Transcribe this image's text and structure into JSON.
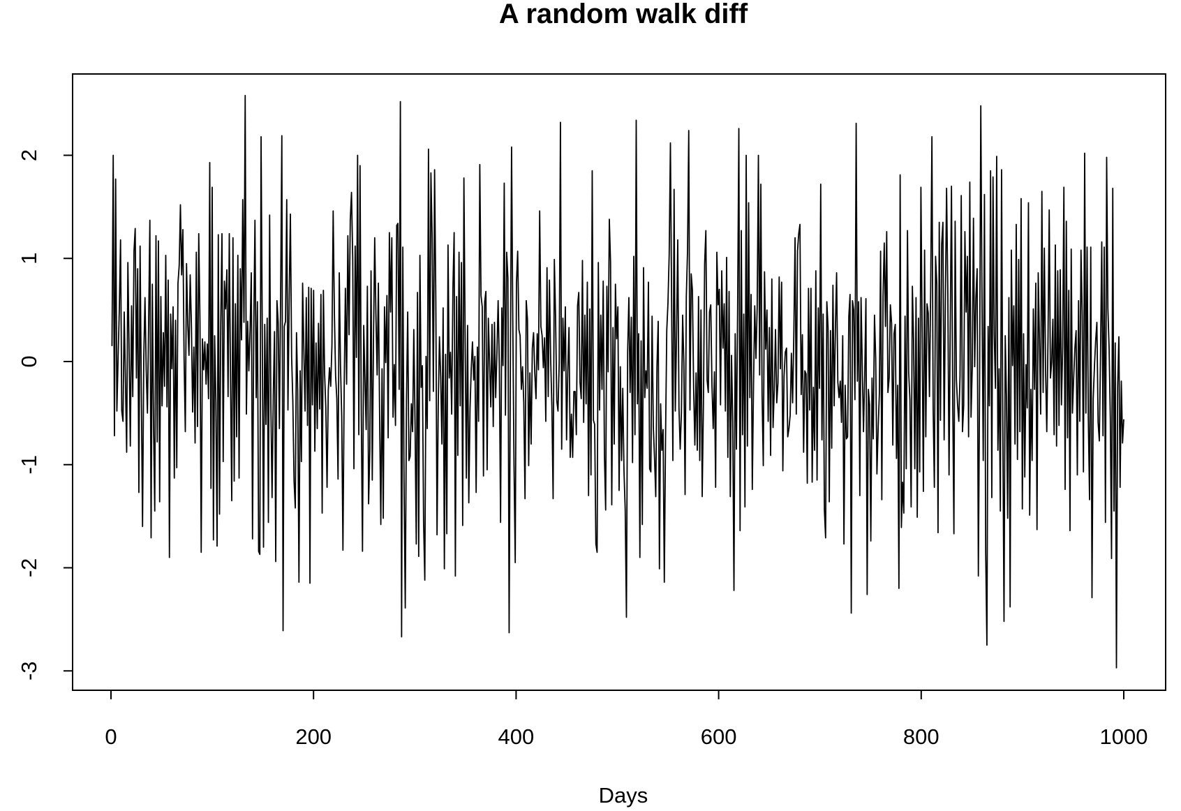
{
  "chart_data": {
    "type": "line",
    "title": "A random walk diff",
    "xlabel": "Days",
    "ylabel": "",
    "xlim": [
      1,
      1000
    ],
    "ylim": [
      -3,
      2.58
    ],
    "x_ticks": [
      0,
      200,
      400,
      600,
      800,
      1000
    ],
    "x_tick_labels": [
      "0",
      "200",
      "400",
      "600",
      "800",
      "1000"
    ],
    "y_ticks": [
      -3,
      -2,
      -1,
      0,
      1,
      2
    ],
    "y_tick_labels": [
      "-3",
      "-2",
      "-1",
      "0",
      "1",
      "2"
    ],
    "grid": false,
    "line_color": "#000000",
    "series": [
      {
        "values": [
          0.15,
          2.0,
          -0.72,
          1.77,
          -0.48,
          0.03,
          0.51,
          1.18,
          -0.48,
          -0.58,
          0.48,
          -0.18,
          -0.88,
          0.96,
          0.13,
          -0.82,
          0.54,
          -0.34,
          1.07,
          1.29,
          -0.16,
          0.9,
          -1.27,
          1.12,
          -0.3,
          -1.6,
          0.03,
          0.62,
          -0.08,
          -0.5,
          0.38,
          1.37,
          -1.71,
          0.75,
          -0.62,
          -1.45,
          1.22,
          -0.78,
          1.17,
          -1.36,
          0.63,
          -0.43,
          0.28,
          -0.24,
          1.03,
          -0.44,
          0.79,
          -1.9,
          0.46,
          -0.07,
          0.53,
          -1.13,
          0.4,
          -1.03,
          0.76,
          0.93,
          1.52,
          0.84,
          1.28,
          0.03,
          -0.68,
          0.95,
          0.37,
          0.06,
          0.84,
          0.35,
          -0.49,
          0.14,
          -0.79,
          1.06,
          -0.63,
          1.24,
          0.39,
          -1.85,
          0.22,
          -0.08,
          0.19,
          -0.22,
          0.17,
          -0.36,
          1.93,
          -1.23,
          1.69,
          -1.73,
          0.25,
          -0.39,
          -1.79,
          1.23,
          -1.48,
          0.36,
          1.24,
          -0.97,
          0.78,
          0.51,
          0.89,
          -0.34,
          1.24,
          -0.17,
          -1.35,
          1.2,
          -1.16,
          0.56,
          -0.73,
          1.03,
          -1.13,
          0.9,
          0.21,
          1.57,
          0.38,
          2.58,
          -0.51,
          0.39,
          -0.09,
          0.31,
          0.86,
          -1.72,
          0.31,
          1.37,
          -0.35,
          0.58,
          -1.84,
          -1.87,
          2.18,
          0.25,
          -1.8,
          0.36,
          -0.61,
          0.42,
          -1.56,
          1.42,
          -0.41,
          -1.32,
          -0.33,
          0.29,
          -1.94,
          0.59,
          0.38,
          -0.65,
          0.65,
          2.19,
          -2.61,
          0.34,
          0.39,
          1.57,
          -0.47,
          0.61,
          1.43,
          0.05,
          -0.39,
          -1.16,
          -1.42,
          0.28,
          -0.29,
          -2.14,
          -0.09,
          -0.97,
          0.76,
          0.12,
          -0.48,
          0.62,
          -0.62,
          0.72,
          -2.15,
          0.71,
          -0.42,
          0.69,
          -0.87,
          0.18,
          -0.65,
          0.37,
          -0.46,
          0.65,
          -1.47,
          0.69,
          -0.12,
          -0.45,
          -1.22,
          -0.28,
          -0.06,
          -0.24,
          0.16,
          1.46,
          0.47,
          -0.14,
          -0.36,
          -1.14,
          0.86,
          -0.04,
          -0.53,
          -1.83,
          -0.27,
          0.71,
          -0.22,
          1.22,
          0.26,
          1.37,
          1.64,
          1.0,
          -1.04,
          1.12,
          0.04,
          2.0,
          -0.71,
          1.9,
          -0.48,
          -1.84,
          0.35,
          -0.17,
          -0.66,
          0.73,
          -1.38,
          -0.86,
          0.88,
          -1.15,
          0.21,
          1.2,
          0.44,
          -0.13,
          0.76,
          -0.51,
          -1.58,
          -0.07,
          -1.52,
          0.53,
          -0.01,
          0.64,
          -0.74,
          1.25,
          0.48,
          1.2,
          -0.54,
          -0.03,
          -0.62,
          1.32,
          1.34,
          -0.27,
          2.52,
          -2.67,
          1.11,
          -1.17,
          -2.39,
          -0.38,
          0.48,
          -0.96,
          -0.92,
          -0.41,
          -0.68,
          0.31,
          -0.6,
          -1.77,
          0.67,
          -1.89,
          1.03,
          -0.25,
          -0.04,
          -1.56,
          -2.12,
          0.05,
          -0.65,
          2.06,
          -0.38,
          1.83,
          1.21,
          -0.29,
          1.86,
          0.62,
          -1.68,
          -0.41,
          0.24,
          -0.15,
          -0.8,
          0.52,
          -2.01,
          0.07,
          -1.67,
          1.13,
          -0.16,
          0.09,
          -0.51,
          0.71,
          1.25,
          -2.08,
          0.63,
          -0.91,
          1.06,
          -0.43,
          0.96,
          -1.59,
          1.78,
          0.25,
          -1.13,
          0.35,
          -1.37,
          -0.46,
          -0.07,
          0.19,
          -0.18,
          0.05,
          -1.27,
          0.14,
          -0.58,
          1.91,
          0.64,
          0.53,
          -1.11,
          0.58,
          0.68,
          -1.05,
          0.42,
          -0.02,
          -0.44,
          0.36,
          -0.63,
          0.38,
          -0.35,
          0.08,
          0.59,
          -0.05,
          -1.56,
          0.52,
          -0.04,
          1.73,
          -0.52,
          1.06,
          0.81,
          -2.63,
          -0.06,
          2.08,
          0.39,
          -1.0,
          -1.95,
          0.76,
          1.07,
          0.31,
          0.25,
          -0.27,
          -0.05,
          -0.4,
          -1.33,
          0.59,
          0.41,
          -1.01,
          -0.11,
          -0.8,
          0.13,
          0.28,
          -0.11,
          -0.36,
          0.27,
          -0.08,
          1.46,
          0.34,
          0.25,
          -0.06,
          0.23,
          -0.58,
          0.91,
          -0.34,
          0.79,
          0.02,
          -0.44,
          -1.33,
          0.99,
          0.44,
          -0.38,
          -0.48,
          -0.01,
          2.32,
          -0.85,
          0.42,
          -0.09,
          0.53,
          -0.76,
          -0.09,
          0.33,
          -0.93,
          -0.51,
          -0.93,
          -0.29,
          -0.29,
          -0.71,
          0.54,
          0.67,
          -0.2,
          -0.36,
          0.98,
          -0.59,
          0.45,
          -0.41,
          0.77,
          -1.3,
          0.51,
          -1.1,
          1.85,
          -0.57,
          -0.61,
          -1.77,
          -1.85,
          0.96,
          -0.47,
          0.45,
          -0.27,
          0.78,
          -0.91,
          -1.44,
          0.73,
          -0.1,
          1.38,
          0.96,
          -1.39,
          0.33,
          -0.8,
          0.75,
          0.22,
          0.53,
          -1.25,
          -0.05,
          -0.96,
          -0.26,
          -1.06,
          -1.44,
          -2.48,
          0.09,
          0.62,
          -0.3,
          0.43,
          -0.98,
          1.02,
          -0.71,
          2.34,
          -0.41,
          0.27,
          -1.9,
          0.2,
          -1.58,
          0.91,
          -0.35,
          -0.09,
          -0.26,
          0.77,
          -1.04,
          -1.07,
          0.44,
          -0.63,
          -0.94,
          -1.31,
          -0.04,
          0.39,
          -2.01,
          -0.41,
          -0.86,
          -0.66,
          -2.14,
          -0.75,
          0.3,
          0.57,
          1.04,
          2.12,
          0.54,
          -0.96,
          1.67,
          -0.48,
          0.25,
          1.18,
          -0.45,
          -0.85,
          -0.49,
          0.45,
          -0.02,
          -1.29,
          0.63,
          1.07,
          2.24,
          -0.47,
          0.85,
          0.69,
          -0.26,
          -0.81,
          -0.11,
          -0.86,
          0.63,
          -0.96,
          0.5,
          -1.31,
          -0.42,
          0.95,
          1.27,
          -0.18,
          -0.3,
          0.48,
          0.55,
          -0.23,
          -0.65,
          -0.1,
          -1.22,
          1.06,
          0.55,
          0.7,
          -0.42,
          0.88,
          0.13,
          0.56,
          -0.48,
          1.01,
          -0.93,
          0.68,
          -1.31,
          0.06,
          -0.58,
          -2.22,
          0.27,
          -0.85,
          0.52,
          2.26,
          -1.64,
          1.27,
          -0.71,
          0.46,
          -1.41,
          2.0,
          -0.82,
          1.54,
          -0.35,
          0.65,
          -1.24,
          -0.23,
          0.54,
          0.03,
          0.52,
          2.0,
          -0.13,
          1.72,
          -0.32,
          -1.01,
          0.87,
          0.12,
          0.5,
          -0.58,
          0.33,
          -0.91,
          0.8,
          -0.64,
          -0.27,
          0.31,
          -0.4,
          -0.21,
          0.82,
          -0.07,
          0.77,
          -1.06,
          -0.14,
          0.09,
          0.13,
          -0.73,
          -0.65,
          -0.52,
          0.08,
          -0.4,
          0.27,
          1.2,
          -0.51,
          1.07,
          1.24,
          1.33,
          -0.32,
          0.26,
          -0.88,
          -0.09,
          -0.12,
          -1.18,
          0.71,
          -0.47,
          0.71,
          -1.17,
          -0.25,
          -0.86,
          0.88,
          -1.15,
          0.52,
          -0.26,
          1.72,
          -0.76,
          0.46,
          -1.44,
          -1.71,
          0.58,
          0.33,
          -1.36,
          0.3,
          -0.84,
          0.74,
          -0.43,
          0.31,
          0.86,
          -0.2,
          -0.35,
          -0.19,
          -0.59,
          0.25,
          -1.77,
          -0.23,
          -0.75,
          -0.73,
          0.44,
          0.65,
          -2.44,
          0.59,
          0.5,
          -0.37,
          2.31,
          -0.19,
          0.58,
          -1.3,
          0.62,
          -0.05,
          -0.68,
          -0.14,
          0.61,
          -2.26,
          -0.27,
          -0.42,
          -1.74,
          -0.16,
          -0.75,
          0.45,
          0.03,
          -1.09,
          -0.65,
          -0.31,
          1.07,
          -1.34,
          0.63,
          1.15,
          0.34,
          1.26,
          -0.3,
          -0.16,
          0.55,
          0.37,
          -0.81,
          0.27,
          0.36,
          -0.94,
          -0.23,
          -2.2,
          1.81,
          -1.61,
          -1.17,
          -1.47,
          0.44,
          -1.04,
          1.27,
          -0.11,
          -0.37,
          -1.41,
          0.73,
          0.21,
          -1.04,
          0.62,
          -1.51,
          0.42,
          -1.07,
          1.69,
          0.29,
          -1.26,
          1.08,
          -0.73,
          0.56,
          0.47,
          -0.34,
          0.73,
          2.18,
          -0.45,
          -1.22,
          1.02,
          0.75,
          -1.66,
          1.35,
          -0.57,
          1.14,
          1.35,
          -0.76,
          0.57,
          1.68,
          0.69,
          -1.1,
          0.37,
          1.7,
          -0.32,
          -1.67,
          1.36,
          -0.17,
          -0.42,
          -0.58,
          -0.14,
          1.61,
          -0.68,
          -0.43,
          1.26,
          0.48,
          1.02,
          -0.73,
          1.74,
          -0.54,
          -0.06,
          1.39,
          -0.05,
          0.62,
          0.9,
          -2.08,
          -0.24,
          2.48,
          0.61,
          -0.96,
          1.62,
          -1.85,
          -2.75,
          0.34,
          -0.43,
          1.85,
          -1.32,
          1.79,
          0.26,
          -0.26,
          1.99,
          -0.86,
          -0.07,
          -1.45,
          1.86,
          -0.57,
          -2.52,
          0.25,
          -0.35,
          -1.52,
          0.62,
          -2.38,
          1.08,
          -0.04,
          0.54,
          -0.8,
          1.33,
          -0.95,
          0.99,
          -0.68,
          1.58,
          -1.43,
          0.27,
          -1.12,
          -0.03,
          -0.45,
          1.54,
          -1.49,
          -0.27,
          -0.96,
          0.51,
          -0.27,
          0.76,
          -1.63,
          0.86,
          0.21,
          -0.51,
          1.65,
          -0.3,
          1.1,
          -0.07,
          -0.68,
          0.22,
          1.47,
          -0.16,
          -0.01,
          0.41,
          -0.71,
          1.13,
          -0.82,
          0.88,
          -0.62,
          0.89,
          -0.42,
          0.14,
          1.69,
          -1.24,
          1.36,
          -0.74,
          0.69,
          -1.64,
          1.09,
          -0.5,
          -0.16,
          0.13,
          0.3,
          -1.1,
          0.59,
          -0.58,
          1.08,
          0.45,
          -1.07,
          2.02,
          -0.5,
          1.11,
          -0.56,
          -1.34,
          1.11,
          -2.29,
          -0.36,
          -0.05,
          0.2,
          0.38,
          -0.59,
          -0.77,
          0.08,
          1.16,
          -0.72,
          1.11,
          -1.56,
          1.98,
          0.52,
          0.13,
          -0.55,
          -1.91,
          1.68,
          -1.45,
          0.18,
          -2.97,
          -0.25,
          0.24,
          -1.22,
          -0.19,
          -0.79,
          -0.56
        ]
      }
    ]
  }
}
